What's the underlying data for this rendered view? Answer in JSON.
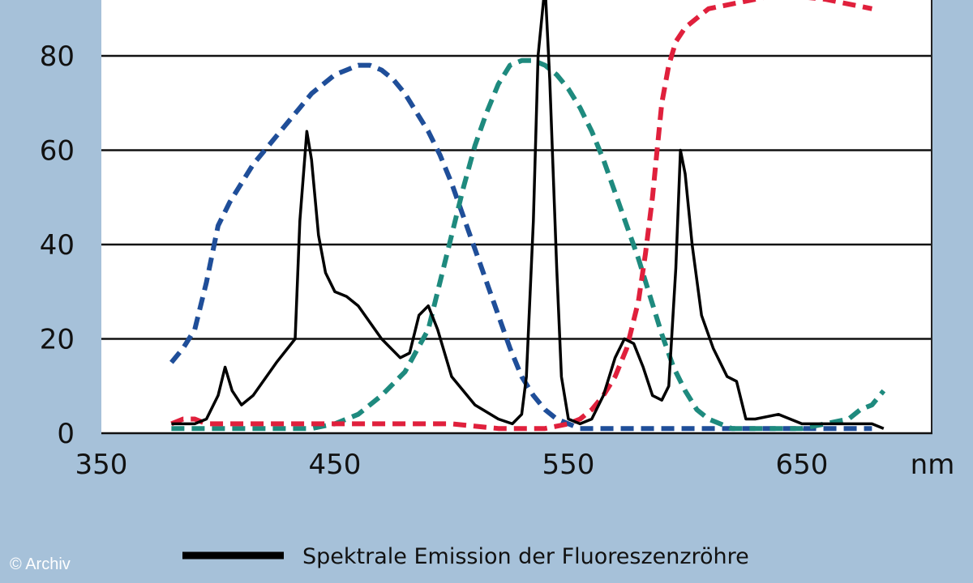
{
  "chart_data": {
    "type": "line",
    "title": "",
    "xlabel": "",
    "ylabel": "",
    "x_unit": "nm",
    "xlim": [
      350,
      690
    ],
    "ylim": [
      0,
      100
    ],
    "xticks": [
      350,
      450,
      550,
      650
    ],
    "yticks": [
      0,
      20,
      40,
      60,
      80
    ],
    "grid": "horizontal",
    "legend_position": "bottom",
    "legend": [
      "Spektrale Emission der Fluoreszenzröhre"
    ],
    "series": [
      {
        "name": "Spektrale Emission der Fluoreszenzröhre",
        "color": "#000000",
        "style": "solid",
        "x": [
          380,
          385,
          390,
          395,
          400,
          403,
          406,
          410,
          415,
          425,
          433,
          435,
          438,
          440,
          443,
          446,
          450,
          455,
          460,
          470,
          478,
          482,
          486,
          490,
          494,
          500,
          510,
          520,
          526,
          530,
          532,
          535,
          537,
          540,
          542,
          545,
          547,
          550,
          555,
          560,
          565,
          570,
          574,
          578,
          582,
          586,
          590,
          593,
          596,
          598,
          600,
          603,
          607,
          612,
          618,
          622,
          626,
          630,
          640,
          650,
          660,
          670,
          680,
          685
        ],
        "y": [
          2,
          2,
          2,
          3,
          8,
          14,
          9,
          6,
          8,
          15,
          20,
          45,
          64,
          58,
          42,
          34,
          30,
          29,
          27,
          20,
          16,
          17,
          25,
          27,
          22,
          12,
          6,
          3,
          2,
          4,
          12,
          45,
          80,
          95,
          75,
          35,
          12,
          3,
          2,
          3,
          8,
          16,
          20,
          19,
          14,
          8,
          7,
          10,
          35,
          60,
          55,
          40,
          25,
          18,
          12,
          11,
          3,
          3,
          4,
          2,
          2,
          2,
          2,
          1
        ]
      },
      {
        "name": "",
        "color": "#1f4e99",
        "style": "dashed",
        "x": [
          380,
          385,
          390,
          395,
          400,
          405,
          410,
          415,
          420,
          425,
          430,
          435,
          440,
          445,
          450,
          455,
          460,
          465,
          470,
          475,
          480,
          485,
          490,
          495,
          500,
          505,
          510,
          515,
          520,
          525,
          530,
          535,
          540,
          545,
          550,
          555,
          560,
          580,
          600,
          620,
          640,
          660,
          680
        ],
        "y": [
          15,
          18,
          22,
          32,
          44,
          49,
          53,
          57,
          60,
          63,
          66,
          69,
          72,
          74,
          76,
          77,
          78,
          78,
          77,
          75,
          72,
          68,
          64,
          59,
          53,
          46,
          39,
          32,
          25,
          18,
          12,
          8,
          5,
          3,
          2,
          1,
          1,
          1,
          1,
          1,
          1,
          1,
          1
        ]
      },
      {
        "name": "",
        "color": "#1e8a7e",
        "style": "dashed",
        "x": [
          380,
          400,
          420,
          440,
          450,
          460,
          470,
          480,
          490,
          495,
          500,
          505,
          510,
          515,
          520,
          525,
          530,
          535,
          540,
          545,
          550,
          555,
          560,
          565,
          570,
          575,
          580,
          585,
          590,
          595,
          600,
          605,
          610,
          615,
          620,
          630,
          640,
          650,
          660,
          670,
          675,
          680,
          685
        ],
        "y": [
          1,
          1,
          1,
          1,
          2,
          4,
          8,
          13,
          22,
          32,
          42,
          52,
          61,
          68,
          74,
          78,
          79,
          79,
          78,
          76,
          73,
          69,
          64,
          58,
          51,
          44,
          37,
          29,
          21,
          14,
          9,
          5,
          3,
          2,
          1,
          1,
          1,
          1,
          2,
          3,
          5,
          6,
          9
        ]
      },
      {
        "name": "",
        "color": "#e0203c",
        "style": "dashed",
        "x": [
          380,
          385,
          390,
          395,
          400,
          410,
          420,
          440,
          460,
          480,
          500,
          520,
          540,
          550,
          555,
          560,
          565,
          570,
          575,
          580,
          583,
          586,
          588,
          590,
          593,
          596,
          600,
          605,
          610,
          620,
          640,
          660,
          680
        ],
        "y": [
          2,
          3,
          3,
          2,
          2,
          2,
          2,
          2,
          2,
          2,
          2,
          1,
          1,
          2,
          3,
          5,
          8,
          12,
          18,
          28,
          38,
          50,
          60,
          70,
          78,
          83,
          86,
          88,
          90,
          91,
          93,
          92,
          90
        ]
      }
    ]
  },
  "credit": "© Archiv"
}
